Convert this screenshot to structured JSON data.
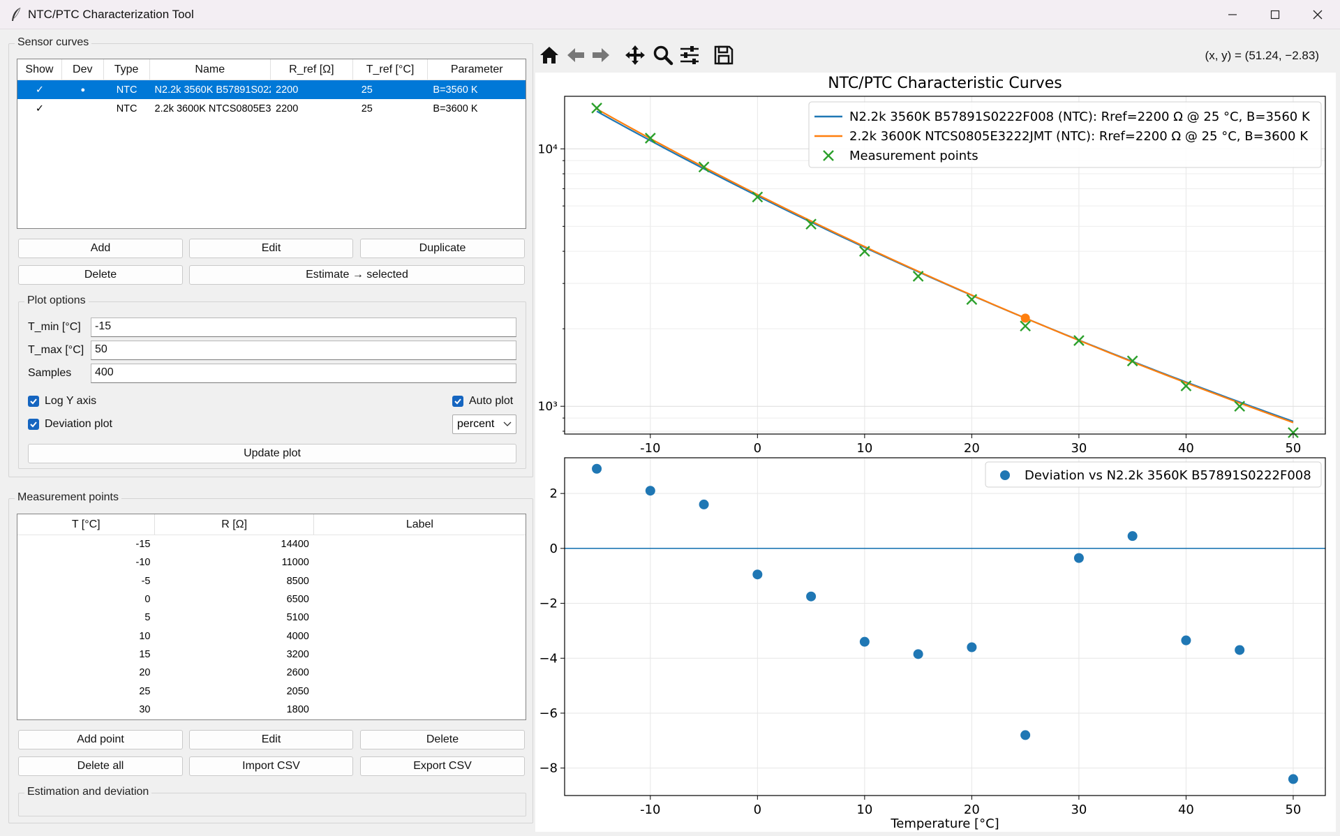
{
  "window": {
    "title": "NTC/PTC Characterization Tool",
    "icons": [
      "feather-icon",
      "minimize-icon",
      "maximize-icon",
      "close-icon"
    ]
  },
  "sensor_curves": {
    "frame_label": "Sensor curves",
    "columns": [
      "Show",
      "Dev",
      "Type",
      "Name",
      "R_ref [Ω]",
      "T_ref [°C]",
      "Parameter"
    ],
    "rows": [
      {
        "show": "✓",
        "dev": "●",
        "type": "NTC",
        "name": "N2.2k 3560K B57891S022",
        "rref": "2200",
        "tref": "25",
        "param": "B=3560 K",
        "selected": true
      },
      {
        "show": "✓",
        "dev": "",
        "type": "NTC",
        "name": "2.2k 3600K NTCS0805E3",
        "rref": "2200",
        "tref": "25",
        "param": "B=3600 K",
        "selected": false
      }
    ],
    "buttons": {
      "add": "Add",
      "edit": "Edit",
      "duplicate": "Duplicate",
      "delete": "Delete",
      "estimate": "Estimate → selected"
    }
  },
  "plot_options": {
    "frame_label": "Plot options",
    "tmin_label": "T_min [°C]",
    "tmin_value": "-15",
    "tmax_label": "T_max [°C]",
    "tmax_value": "50",
    "samples_label": "Samples",
    "samples_value": "400",
    "log_y_label": "Log Y axis",
    "auto_plot_label": "Auto plot",
    "deviation_label": "Deviation plot",
    "deviation_mode": "percent",
    "update_button": "Update plot"
  },
  "measurement_points": {
    "frame_label": "Measurement points",
    "columns": [
      "T [°C]",
      "R [Ω]",
      "Label"
    ],
    "rows": [
      {
        "t": "-15",
        "r": "14400",
        "label": ""
      },
      {
        "t": "-10",
        "r": "11000",
        "label": ""
      },
      {
        "t": "-5",
        "r": "8500",
        "label": ""
      },
      {
        "t": "0",
        "r": "6500",
        "label": ""
      },
      {
        "t": "5",
        "r": "5100",
        "label": ""
      },
      {
        "t": "10",
        "r": "4000",
        "label": ""
      },
      {
        "t": "15",
        "r": "3200",
        "label": ""
      },
      {
        "t": "20",
        "r": "2600",
        "label": ""
      },
      {
        "t": "25",
        "r": "2050",
        "label": ""
      },
      {
        "t": "30",
        "r": "1800",
        "label": ""
      }
    ],
    "buttons": {
      "add_point": "Add point",
      "edit": "Edit",
      "delete": "Delete",
      "delete_all": "Delete all",
      "import_csv": "Import CSV",
      "export_csv": "Export CSV"
    }
  },
  "estimation": {
    "frame_label": "Estimation and deviation"
  },
  "toolbar": {
    "icons": [
      "home-icon",
      "back-arrow-icon",
      "forward-arrow-icon",
      "pan-icon",
      "zoom-icon",
      "configure-subplots-icon",
      "save-icon"
    ],
    "coord_readout": "(x, y) = (51.24, −2.83)"
  },
  "colors": {
    "blue": "#1f77b4",
    "orange": "#ff7f0e",
    "green": "#2ca02c",
    "selection": "#0078d7"
  },
  "chart_data": [
    {
      "type": "line",
      "title": "NTC/PTC Characteristic Curves",
      "xlabel": "",
      "ylabel": "",
      "log_y": true,
      "xlim": [
        -18,
        53
      ],
      "ylim": [
        780,
        16000
      ],
      "x_ticks": [
        -10,
        0,
        10,
        20,
        30,
        40,
        50
      ],
      "y_tick_labels": [
        "10⁴",
        "10³"
      ],
      "grid": true,
      "legend_position": "top-right",
      "series": [
        {
          "name": "N2.2k 3560K B57891S0222F008 (NTC): Rref=2200 Ω @ 25 °C, B=3560 K",
          "color": "#1f77b4",
          "B": 3560,
          "rref": 2200,
          "tref": 25,
          "x_range": [
            -15,
            50
          ]
        },
        {
          "name": "2.2k 3600K NTCS0805E3222JMT (NTC): Rref=2200 Ω @ 25 °C, B=3600 K",
          "color": "#ff7f0e",
          "B": 3600,
          "rref": 2200,
          "tref": 25,
          "x_range": [
            -15,
            50
          ]
        },
        {
          "name": "Measurement points",
          "color": "#2ca02c",
          "marker": "x",
          "x": [
            -15,
            -10,
            -5,
            0,
            5,
            10,
            15,
            20,
            25,
            30,
            35,
            40,
            45,
            50
          ],
          "y": [
            14400,
            11000,
            8500,
            6500,
            5100,
            4000,
            3200,
            2600,
            2050,
            1800,
            1500,
            1200,
            1000,
            790
          ]
        }
      ],
      "reference_point": {
        "x": 25,
        "y": 2200,
        "color": "#ff7f0e"
      }
    },
    {
      "type": "scatter",
      "title": "",
      "xlabel": "Temperature [°C]",
      "ylabel": "",
      "xlim": [
        -18,
        53
      ],
      "ylim": [
        -9,
        3.3
      ],
      "x_ticks": [
        -10,
        0,
        10,
        20,
        30,
        40,
        50
      ],
      "y_ticks": [
        2,
        0,
        -2,
        -4,
        -6,
        -8
      ],
      "y_tick_labels": [
        "2",
        "0",
        "−2",
        "−4",
        "−6",
        "−8"
      ],
      "grid": true,
      "legend_position": "top-right",
      "zero_line": true,
      "series": [
        {
          "name": "Deviation vs N2.2k 3560K B57891S0222F008",
          "color": "#1f77b4",
          "x": [
            -15,
            -10,
            -5,
            0,
            5,
            10,
            15,
            20,
            25,
            30,
            35,
            40,
            45,
            50
          ],
          "y": [
            2.9,
            2.1,
            1.6,
            -0.95,
            -1.75,
            -3.4,
            -3.85,
            -3.6,
            -6.8,
            -0.35,
            0.45,
            -3.35,
            -3.7,
            -8.4
          ]
        }
      ]
    }
  ]
}
